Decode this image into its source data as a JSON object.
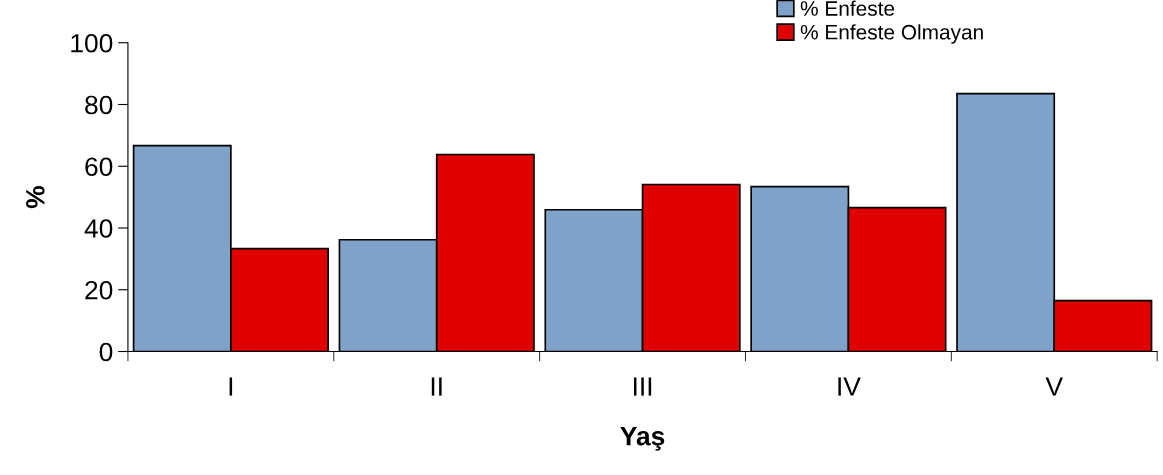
{
  "chart_data": {
    "type": "bar",
    "xlabel": "Yaş",
    "ylabel": "%",
    "categories": [
      "I",
      "II",
      "III",
      "IV",
      "V"
    ],
    "series": [
      {
        "name": "% Enfeste",
        "color": "#7fa3c8",
        "values": [
          66.7,
          36.2,
          45.9,
          53.4,
          83.5
        ]
      },
      {
        "name": "% Enfeste Olmayan",
        "color": "#e00000",
        "values": [
          33.3,
          63.8,
          54.1,
          46.6,
          16.5
        ]
      }
    ],
    "ylim": [
      0,
      100
    ],
    "yticks": [
      0,
      20,
      40,
      60,
      80,
      100
    ],
    "legend": "top right",
    "grid": false
  }
}
